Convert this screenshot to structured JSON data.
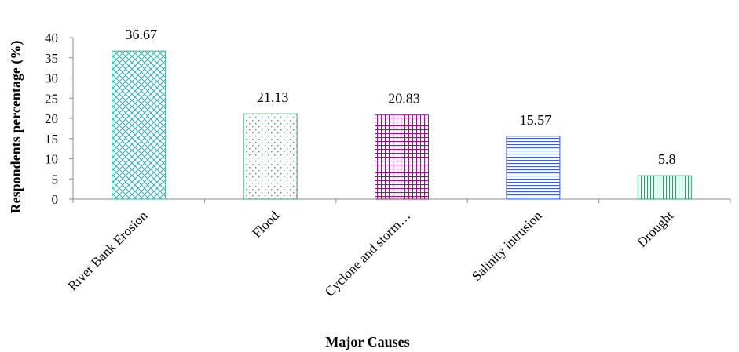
{
  "chart_data": {
    "type": "bar",
    "title": "",
    "xlabel": "Major Causes",
    "ylabel": "Respondents percentage (%)",
    "ylim": [
      0,
      40
    ],
    "yticks": [
      "0",
      "5",
      "10",
      "15",
      "20",
      "25",
      "30",
      "35",
      "40"
    ],
    "grid": false,
    "legend": "none",
    "categories": [
      "River Bank Erosion",
      "Flood",
      "Cyclone and storm…",
      "Salinity intrusion",
      "Drought"
    ],
    "values": [
      36.67,
      21.13,
      20.83,
      15.57,
      5.8
    ],
    "value_labels": [
      "36.67",
      "21.13",
      "20.83",
      "15.57",
      "5.8"
    ],
    "series_colors": [
      "#2bb5a6",
      "#3a9b6e",
      "#8b1a7a",
      "#3f5fbf",
      "#3a9b6e"
    ],
    "patterns": [
      "crosshatch-diagonal",
      "dots",
      "grid",
      "horizontal-lines",
      "vertical-lines"
    ]
  }
}
